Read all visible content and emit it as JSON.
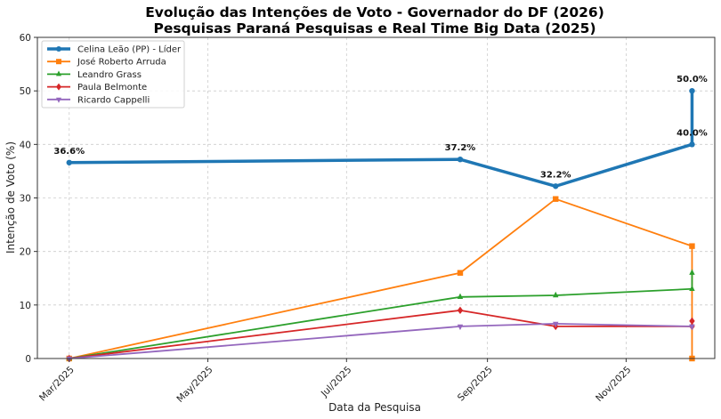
{
  "chart_data": {
    "type": "line",
    "title": "Evolução das Intenções de Voto - Governador do DF (2026)",
    "subtitle": "Pesquisas Paraná Pesquisas e Real Time Big Data (2025)",
    "xlabel": "Data da Pesquisa",
    "ylabel": "Intenção de Voto (%)",
    "ylim": [
      0,
      60
    ],
    "yticks": [
      0,
      10,
      20,
      30,
      40,
      50,
      60
    ],
    "xlim": [
      "2025-02-15",
      "2025-12-10"
    ],
    "xticks": [
      {
        "date": "2025-03-01",
        "label": "Mar/2025"
      },
      {
        "date": "2025-05-01",
        "label": "May/2025"
      },
      {
        "date": "2025-07-01",
        "label": "Jul/2025"
      },
      {
        "date": "2025-09-01",
        "label": "Sep/2025"
      },
      {
        "date": "2025-11-01",
        "label": "Nov/2025"
      }
    ],
    "grid": true,
    "legend_position": "top-left",
    "x": [
      "2025-03-01",
      "2025-08-20",
      "2025-10-01",
      "2025-11-30",
      "2025-11-30"
    ],
    "series": [
      {
        "name": "Celina Leão (PP) - Líder",
        "color": "#1f77b4",
        "marker": "circle",
        "emphasis": true,
        "values": [
          36.6,
          37.2,
          32.2,
          40.0,
          50.0
        ],
        "labels": [
          "36.6%",
          "37.2%",
          "32.2%",
          "40.0%",
          "50.0%"
        ]
      },
      {
        "name": "José Roberto Arruda",
        "color": "#ff7f0e",
        "marker": "square",
        "values": [
          0,
          16.0,
          29.8,
          21.0,
          0
        ]
      },
      {
        "name": "Leandro Grass",
        "color": "#2ca02c",
        "marker": "triangle-up",
        "values": [
          0,
          11.5,
          11.8,
          13.0,
          16.0
        ]
      },
      {
        "name": "Paula Belmonte",
        "color": "#d62728",
        "marker": "diamond",
        "values": [
          0,
          9.0,
          6.0,
          6.0,
          7.0
        ]
      },
      {
        "name": "Ricardo Cappelli",
        "color": "#9467bd",
        "marker": "triangle-down",
        "values": [
          0,
          6.0,
          6.5,
          6.0,
          6.0
        ]
      }
    ]
  }
}
